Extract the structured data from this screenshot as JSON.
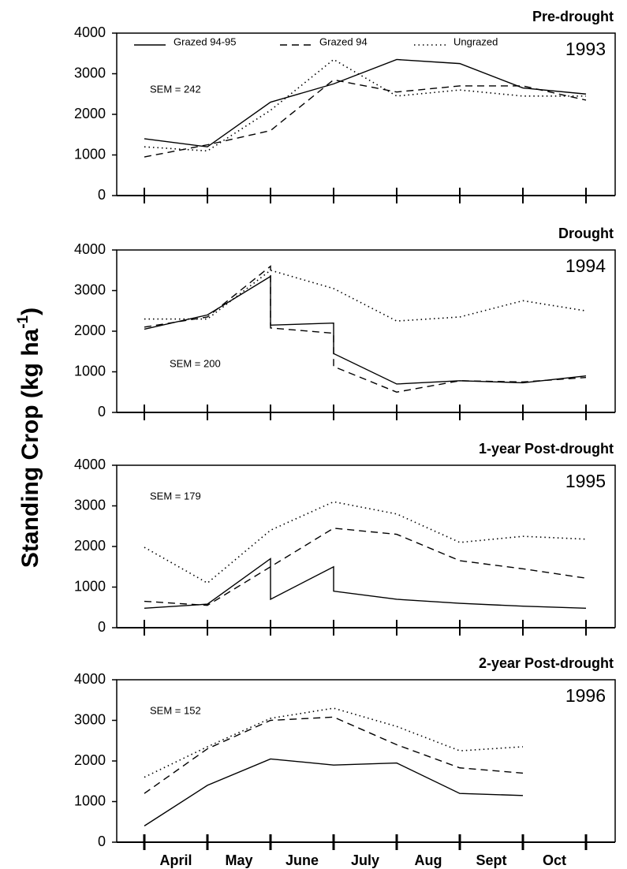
{
  "ylabel": {
    "text": "Standing Crop (kg ha",
    "sup": "-1",
    "end": ")"
  },
  "chart_data": [
    {
      "type": "line",
      "title": "Pre-drought",
      "year_label": "1993",
      "sem_label": "SEM = 242",
      "ylim": [
        0,
        4000
      ],
      "yticks": [
        0,
        1000,
        2000,
        3000,
        4000
      ],
      "xlim": [
        0,
        7
      ],
      "xticks": [
        0,
        1,
        2,
        3,
        4,
        5,
        6,
        7
      ],
      "legend": "top",
      "series": [
        {
          "name": "Grazed 94-95",
          "color": "#000000",
          "dash": "solid",
          "x": [
            0,
            1,
            2,
            3,
            4,
            5,
            6,
            7
          ],
          "values": [
            1400,
            1200,
            2300,
            2750,
            3350,
            3250,
            2650,
            2500
          ]
        },
        {
          "name": "Grazed 94",
          "color": "#000000",
          "dash": "dashed",
          "x": [
            0,
            1,
            2,
            3,
            4,
            5,
            6,
            7
          ],
          "values": [
            950,
            1250,
            1600,
            2850,
            2550,
            2700,
            2700,
            2350
          ]
        },
        {
          "name": "Ungrazed",
          "color": "#000000",
          "dash": "dotted",
          "x": [
            0,
            1,
            2,
            3,
            4,
            5,
            6,
            7
          ],
          "values": [
            1200,
            1100,
            2100,
            3350,
            2450,
            2600,
            2450,
            2450
          ]
        }
      ]
    },
    {
      "type": "line",
      "title": "Drought",
      "year_label": "1994",
      "sem_label": "SEM = 200",
      "ylim": [
        0,
        4000
      ],
      "yticks": [
        0,
        1000,
        2000,
        3000,
        4000
      ],
      "xlim": [
        0,
        7
      ],
      "xticks": [
        0,
        1,
        2,
        3,
        4,
        5,
        6,
        7
      ],
      "series": [
        {
          "color": "#000000",
          "dash": "solid",
          "x": [
            0,
            1,
            2,
            2,
            3,
            3,
            4,
            5,
            6,
            7
          ],
          "values": [
            2050,
            2400,
            3350,
            2150,
            2200,
            1450,
            700,
            780,
            730,
            900
          ]
        },
        {
          "color": "#000000",
          "dash": "dashed",
          "x": [
            0,
            1,
            2,
            2,
            3,
            3,
            4,
            5,
            6,
            7
          ],
          "values": [
            2100,
            2350,
            3600,
            2080,
            1950,
            1130,
            500,
            780,
            750,
            860
          ]
        },
        {
          "color": "#000000",
          "dash": "dotted",
          "x": [
            0,
            1,
            2,
            3,
            4,
            5,
            6,
            7
          ],
          "values": [
            2300,
            2300,
            3500,
            3050,
            2250,
            2350,
            2750,
            2500
          ]
        }
      ]
    },
    {
      "type": "line",
      "title": "1-year Post-drought",
      "year_label": "1995",
      "sem_label": "SEM = 179",
      "ylim": [
        0,
        4000
      ],
      "yticks": [
        0,
        1000,
        2000,
        3000,
        4000
      ],
      "xlim": [
        0,
        7
      ],
      "xticks": [
        0,
        1,
        2,
        3,
        4,
        5,
        6,
        7
      ],
      "series": [
        {
          "color": "#000000",
          "dash": "solid",
          "x": [
            0,
            1,
            2,
            2,
            3,
            3,
            4,
            5,
            6,
            7
          ],
          "values": [
            480,
            580,
            1700,
            700,
            1500,
            900,
            700,
            600,
            530,
            480
          ]
        },
        {
          "color": "#000000",
          "dash": "dashed",
          "x": [
            0,
            1,
            2,
            3,
            4,
            5,
            6,
            7
          ],
          "values": [
            650,
            550,
            1500,
            2450,
            2300,
            1650,
            1450,
            1220
          ]
        },
        {
          "color": "#000000",
          "dash": "dotted",
          "x": [
            0,
            1,
            2,
            3,
            4,
            5,
            6,
            7
          ],
          "values": [
            1980,
            1100,
            2400,
            3100,
            2800,
            2100,
            2250,
            2180
          ]
        }
      ]
    },
    {
      "type": "line",
      "title": "2-year Post-drought",
      "year_label": "1996",
      "sem_label": "SEM = 152",
      "ylim": [
        0,
        4000
      ],
      "yticks": [
        0,
        1000,
        2000,
        3000,
        4000
      ],
      "xlim": [
        0,
        7
      ],
      "xticks": [
        0,
        1,
        2,
        3,
        4,
        5,
        6,
        7
      ],
      "x_labels": [
        "April",
        "May",
        "June",
        "July",
        "Aug",
        "Sept",
        "Oct"
      ],
      "series": [
        {
          "color": "#000000",
          "dash": "solid",
          "x": [
            0,
            1,
            2,
            3,
            4,
            5,
            6
          ],
          "values": [
            400,
            1400,
            2050,
            1900,
            1950,
            1200,
            1150
          ]
        },
        {
          "color": "#000000",
          "dash": "dashed",
          "x": [
            0,
            1,
            2,
            3,
            4,
            5,
            6
          ],
          "values": [
            1200,
            2300,
            3000,
            3080,
            2400,
            1830,
            1700
          ]
        },
        {
          "color": "#000000",
          "dash": "dotted",
          "x": [
            0,
            1,
            2,
            3,
            4,
            5,
            6
          ],
          "values": [
            1600,
            2350,
            3050,
            3300,
            2850,
            2250,
            2350
          ]
        }
      ]
    }
  ]
}
